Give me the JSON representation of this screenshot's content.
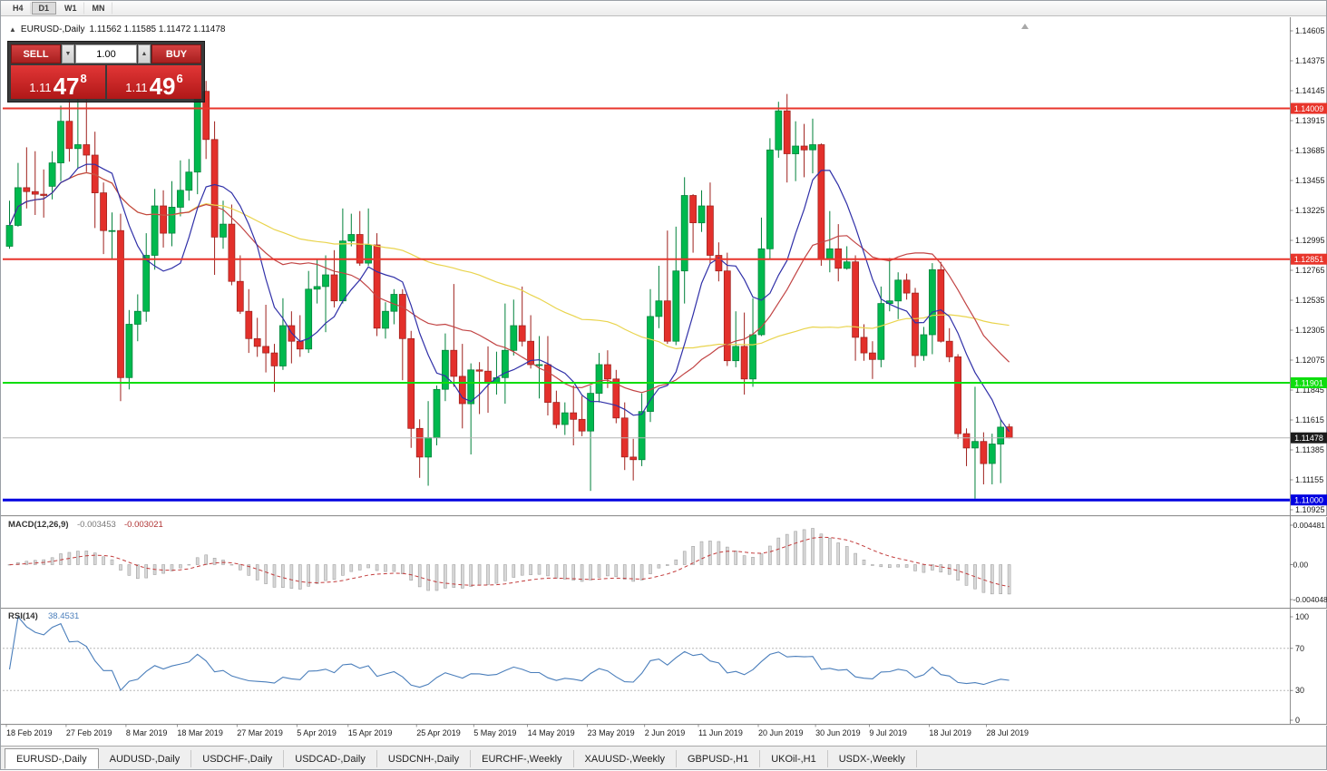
{
  "toolbar": {
    "items": [
      {
        "label": "H4",
        "active": false
      },
      {
        "label": "D1",
        "active": true
      },
      {
        "label": "W1",
        "active": false
      },
      {
        "label": "MN",
        "active": false
      }
    ]
  },
  "chart": {
    "marker": "▲",
    "title": "EURUSD-,Daily",
    "ohlc": "1.11562 1.11585 1.11472 1.11478"
  },
  "trade_panel": {
    "sell_label": "SELL",
    "buy_label": "BUY",
    "volume": "1.00",
    "dropdown_icon": "▼",
    "up_icon": "▲",
    "sell_price": {
      "base": "1.11",
      "big": "47",
      "sup": "8"
    },
    "buy_price": {
      "base": "1.11",
      "big": "49",
      "sup": "6"
    }
  },
  "tabs": [
    {
      "label": "EURUSD-,Daily",
      "active": true
    },
    {
      "label": "AUDUSD-,Daily",
      "active": false
    },
    {
      "label": "USDCHF-,Daily",
      "active": false
    },
    {
      "label": "USDCAD-,Daily",
      "active": false
    },
    {
      "label": "USDCNH-,Daily",
      "active": false
    },
    {
      "label": "EURCHF-,Weekly",
      "active": false
    },
    {
      "label": "XAUUSD-,Weekly",
      "active": false
    },
    {
      "label": "GBPUSD-,H1",
      "active": false
    },
    {
      "label": "UKOil-,H1",
      "active": false
    },
    {
      "label": "USDX-,Weekly",
      "active": false
    }
  ],
  "chart_data": {
    "type": "candlestick",
    "symbol": "EURUSD-",
    "timeframe": "Daily",
    "colors": {
      "bull": "#00b94e",
      "bull_border": "#00813a",
      "bear": "#e3302b",
      "bear_border": "#9e201c",
      "ma_fast": "#3030a8",
      "ma_mid": "#c24545",
      "ma_slow": "#e9d44d",
      "macd_hist": "#d8d8d8",
      "macd_hist_border": "#a2a2a2",
      "macd_signal": "#c23b3b",
      "rsi": "#4a7ebb",
      "level_dotted": "#b8b8b8",
      "bid_line": "#b4b4b4",
      "bid_label_bg": "#1c1c1c",
      "axis_text": "#1a1a1a",
      "separator": "#909090"
    },
    "price_axis": {
      "min": 1.10925,
      "max": 1.14605,
      "ticks": [
        "1.14605",
        "1.14375",
        "1.14145",
        "1.13915",
        "1.13685",
        "1.13455",
        "1.13225",
        "1.12995",
        "1.12765",
        "1.12535",
        "1.12305",
        "1.12075",
        "1.11845",
        "1.11615",
        "1.11385",
        "1.11155",
        "1.10925"
      ]
    },
    "hlines": [
      {
        "price": 1.14009,
        "label": "1.14009",
        "color": "#e8352b",
        "width": 2
      },
      {
        "price": 1.12851,
        "label": "1.12851",
        "color": "#e8352b",
        "width": 2
      },
      {
        "price": 1.11901,
        "label": "1.11901",
        "color": "#0ddd0d",
        "width": 2
      },
      {
        "price": 1.11,
        "label": "1.11000",
        "color": "#0000e0",
        "width": 3
      }
    ],
    "current_price": {
      "value": 1.11478,
      "label": "1.11478"
    },
    "moving_averages": [
      {
        "period": 55,
        "color": "#e9d44d"
      },
      {
        "period": 20,
        "color": "#c24545"
      },
      {
        "period": 8,
        "color": "#3030a8"
      }
    ],
    "macd": {
      "name": "MACD(12,26,9)",
      "value": "-0.003453",
      "signal_value": "-0.003021",
      "fast": 12,
      "slow": 26,
      "signal_period": 9,
      "axis": [
        "0.004481",
        "0.00",
        "-0.004048"
      ]
    },
    "rsi": {
      "name": "RSI(14)",
      "value": "38.4531",
      "period": 14,
      "levels": [
        70,
        30
      ],
      "axis": [
        100,
        70,
        30,
        0
      ]
    },
    "date_labels": [
      {
        "i": 0,
        "label": "18 Feb 2019"
      },
      {
        "i": 7,
        "label": "27 Feb 2019"
      },
      {
        "i": 14,
        "label": "8 Mar 2019"
      },
      {
        "i": 20,
        "label": "18 Mar 2019"
      },
      {
        "i": 27,
        "label": "27 Mar 2019"
      },
      {
        "i": 34,
        "label": "5 Apr 2019"
      },
      {
        "i": 40,
        "label": "15 Apr 2019"
      },
      {
        "i": 48,
        "label": "25 Apr 2019"
      },
      {
        "i": 54.7,
        "label": "5 May 2019"
      },
      {
        "i": 61,
        "label": "14 May 2019"
      },
      {
        "i": 68,
        "label": "23 May 2019"
      },
      {
        "i": 74.7,
        "label": "2 Jun 2019"
      },
      {
        "i": 81,
        "label": "11 Jun 2019"
      },
      {
        "i": 88,
        "label": "20 Jun 2019"
      },
      {
        "i": 94.7,
        "label": "30 Jun 2019"
      },
      {
        "i": 101,
        "label": "9 Jul 2019"
      },
      {
        "i": 108,
        "label": "18 Jul 2019"
      },
      {
        "i": 114.7,
        "label": "28 Jul 2019"
      }
    ],
    "candles": [
      [
        1.1295,
        1.133,
        1.1293,
        1.1311
      ],
      [
        1.1311,
        1.1359,
        1.131,
        1.134
      ],
      [
        1.134,
        1.1371,
        1.1324,
        1.1337
      ],
      [
        1.1337,
        1.1368,
        1.1319,
        1.1335
      ],
      [
        1.1335,
        1.1354,
        1.1317,
        1.1334
      ],
      [
        1.1341,
        1.1368,
        1.1331,
        1.1359
      ],
      [
        1.1359,
        1.1403,
        1.1345,
        1.1391
      ],
      [
        1.1391,
        1.1408,
        1.136,
        1.137
      ],
      [
        1.137,
        1.142,
        1.1355,
        1.1373
      ],
      [
        1.1373,
        1.1408,
        1.1352,
        1.1365
      ],
      [
        1.1365,
        1.1383,
        1.1309,
        1.1336
      ],
      [
        1.1336,
        1.1344,
        1.1289,
        1.1307
      ],
      [
        1.1307,
        1.1321,
        1.1285,
        1.1307
      ],
      [
        1.1307,
        1.132,
        1.1176,
        1.1194
      ],
      [
        1.1194,
        1.1246,
        1.1185,
        1.1235
      ],
      [
        1.1235,
        1.1258,
        1.1222,
        1.1245
      ],
      [
        1.1245,
        1.1305,
        1.1237,
        1.1288
      ],
      [
        1.1288,
        1.1339,
        1.1277,
        1.1326
      ],
      [
        1.1326,
        1.1338,
        1.1294,
        1.1305
      ],
      [
        1.1305,
        1.1345,
        1.1295,
        1.1325
      ],
      [
        1.1325,
        1.1361,
        1.1318,
        1.1338
      ],
      [
        1.1338,
        1.1362,
        1.133,
        1.1352
      ],
      [
        1.1352,
        1.142,
        1.1335,
        1.1414
      ],
      [
        1.1414,
        1.1422,
        1.1362,
        1.1377
      ],
      [
        1.1377,
        1.1391,
        1.1273,
        1.1302
      ],
      [
        1.1302,
        1.133,
        1.1293,
        1.1312
      ],
      [
        1.1312,
        1.1327,
        1.1265,
        1.1268
      ],
      [
        1.1268,
        1.1288,
        1.1243,
        1.1245
      ],
      [
        1.1245,
        1.1262,
        1.1213,
        1.1224
      ],
      [
        1.1224,
        1.124,
        1.121,
        1.1218
      ],
      [
        1.1218,
        1.125,
        1.1198,
        1.1213
      ],
      [
        1.1213,
        1.122,
        1.1183,
        1.1203
      ],
      [
        1.1203,
        1.1255,
        1.12,
        1.1234
      ],
      [
        1.1234,
        1.1245,
        1.1205,
        1.1222
      ],
      [
        1.1222,
        1.1242,
        1.121,
        1.1216
      ],
      [
        1.1216,
        1.1276,
        1.1213,
        1.1262
      ],
      [
        1.1262,
        1.1285,
        1.1251,
        1.1264
      ],
      [
        1.1264,
        1.1288,
        1.1229,
        1.1273
      ],
      [
        1.1273,
        1.1292,
        1.1248,
        1.1253
      ],
      [
        1.1253,
        1.1324,
        1.1251,
        1.1299
      ],
      [
        1.1299,
        1.132,
        1.1295,
        1.1304
      ],
      [
        1.1304,
        1.1322,
        1.128,
        1.1282
      ],
      [
        1.1282,
        1.1324,
        1.128,
        1.1296
      ],
      [
        1.1296,
        1.1305,
        1.1226,
        1.1232
      ],
      [
        1.1232,
        1.1252,
        1.1224,
        1.1245
      ],
      [
        1.1245,
        1.1262,
        1.1235,
        1.1258
      ],
      [
        1.1258,
        1.1262,
        1.1192,
        1.1224
      ],
      [
        1.1224,
        1.123,
        1.114,
        1.1155
      ],
      [
        1.1155,
        1.1162,
        1.1117,
        1.1133
      ],
      [
        1.1133,
        1.1176,
        1.1111,
        1.1148
      ],
      [
        1.1148,
        1.1188,
        1.1142,
        1.1185
      ],
      [
        1.1185,
        1.1228,
        1.1176,
        1.1215
      ],
      [
        1.1215,
        1.1266,
        1.1187,
        1.1195
      ],
      [
        1.1195,
        1.122,
        1.1155,
        1.1174
      ],
      [
        1.1174,
        1.1205,
        1.1135,
        1.12
      ],
      [
        1.12,
        1.1206,
        1.1166,
        1.1199
      ],
      [
        1.1199,
        1.1218,
        1.1167,
        1.119
      ],
      [
        1.119,
        1.1214,
        1.1181,
        1.1194
      ],
      [
        1.1194,
        1.1251,
        1.1174,
        1.1215
      ],
      [
        1.1215,
        1.1254,
        1.1211,
        1.1234
      ],
      [
        1.1234,
        1.1264,
        1.1218,
        1.1222
      ],
      [
        1.1222,
        1.1242,
        1.1201,
        1.1204
      ],
      [
        1.1204,
        1.1226,
        1.1178,
        1.1204
      ],
      [
        1.1204,
        1.1226,
        1.1165,
        1.1175
      ],
      [
        1.1175,
        1.1184,
        1.1155,
        1.1158
      ],
      [
        1.1158,
        1.1175,
        1.115,
        1.1167
      ],
      [
        1.1167,
        1.1188,
        1.1142,
        1.1162
      ],
      [
        1.1162,
        1.118,
        1.1149,
        1.1153
      ],
      [
        1.1153,
        1.1188,
        1.1107,
        1.1182
      ],
      [
        1.1182,
        1.1213,
        1.1175,
        1.1204
      ],
      [
        1.1204,
        1.1215,
        1.1186,
        1.1193
      ],
      [
        1.1193,
        1.12,
        1.1159,
        1.1163
      ],
      [
        1.1163,
        1.1175,
        1.1123,
        1.1133
      ],
      [
        1.1133,
        1.1147,
        1.1115,
        1.1131
      ],
      [
        1.1131,
        1.1182,
        1.1126,
        1.1168
      ],
      [
        1.1168,
        1.1262,
        1.116,
        1.1241
      ],
      [
        1.1241,
        1.128,
        1.1232,
        1.1253
      ],
      [
        1.1253,
        1.1307,
        1.122,
        1.1222
      ],
      [
        1.1222,
        1.131,
        1.1219,
        1.1276
      ],
      [
        1.1276,
        1.1348,
        1.1251,
        1.1334
      ],
      [
        1.1334,
        1.1335,
        1.129,
        1.1313
      ],
      [
        1.1313,
        1.1338,
        1.1306,
        1.1326
      ],
      [
        1.1326,
        1.1344,
        1.1282,
        1.1288
      ],
      [
        1.1288,
        1.1298,
        1.1268,
        1.1276
      ],
      [
        1.1276,
        1.129,
        1.1203,
        1.1207
      ],
      [
        1.1207,
        1.1245,
        1.1202,
        1.1218
      ],
      [
        1.1218,
        1.1244,
        1.1181,
        1.1193
      ],
      [
        1.1193,
        1.1255,
        1.1187,
        1.1227
      ],
      [
        1.1227,
        1.1317,
        1.1226,
        1.1293
      ],
      [
        1.1293,
        1.1378,
        1.1285,
        1.1369
      ],
      [
        1.1369,
        1.1406,
        1.1363,
        1.1399
      ],
      [
        1.1399,
        1.1412,
        1.1344,
        1.1366
      ],
      [
        1.1366,
        1.1391,
        1.1345,
        1.1372
      ],
      [
        1.1372,
        1.1389,
        1.1348,
        1.1369
      ],
      [
        1.1369,
        1.1393,
        1.1351,
        1.1373
      ],
      [
        1.1373,
        1.1374,
        1.128,
        1.1285
      ],
      [
        1.1285,
        1.1322,
        1.1275,
        1.1293
      ],
      [
        1.1293,
        1.1312,
        1.1268,
        1.1278
      ],
      [
        1.1278,
        1.1295,
        1.1277,
        1.1283
      ],
      [
        1.1283,
        1.1288,
        1.1207,
        1.1225
      ],
      [
        1.1225,
        1.1235,
        1.1207,
        1.1213
      ],
      [
        1.1213,
        1.1222,
        1.1193,
        1.1208
      ],
      [
        1.1208,
        1.1264,
        1.1202,
        1.1251
      ],
      [
        1.1251,
        1.1286,
        1.1245,
        1.1253
      ],
      [
        1.1253,
        1.1275,
        1.1239,
        1.1269
      ],
      [
        1.1269,
        1.1274,
        1.1254,
        1.1259
      ],
      [
        1.1259,
        1.1263,
        1.1202,
        1.1211
      ],
      [
        1.1211,
        1.1233,
        1.1207,
        1.1227
      ],
      [
        1.1227,
        1.1282,
        1.1212,
        1.1277
      ],
      [
        1.1277,
        1.1283,
        1.1221,
        1.1222
      ],
      [
        1.1222,
        1.1232,
        1.1206,
        1.121
      ],
      [
        1.121,
        1.1212,
        1.1147,
        1.1151
      ],
      [
        1.1151,
        1.1155,
        1.1126,
        1.114
      ],
      [
        1.114,
        1.1187,
        1.1101,
        1.1145
      ],
      [
        1.1145,
        1.1152,
        1.1112,
        1.1128
      ],
      [
        1.1128,
        1.1151,
        1.1112,
        1.1143
      ],
      [
        1.1143,
        1.1162,
        1.1113,
        1.1156
      ],
      [
        1.11562,
        1.11585,
        1.11472,
        1.11478
      ]
    ]
  }
}
